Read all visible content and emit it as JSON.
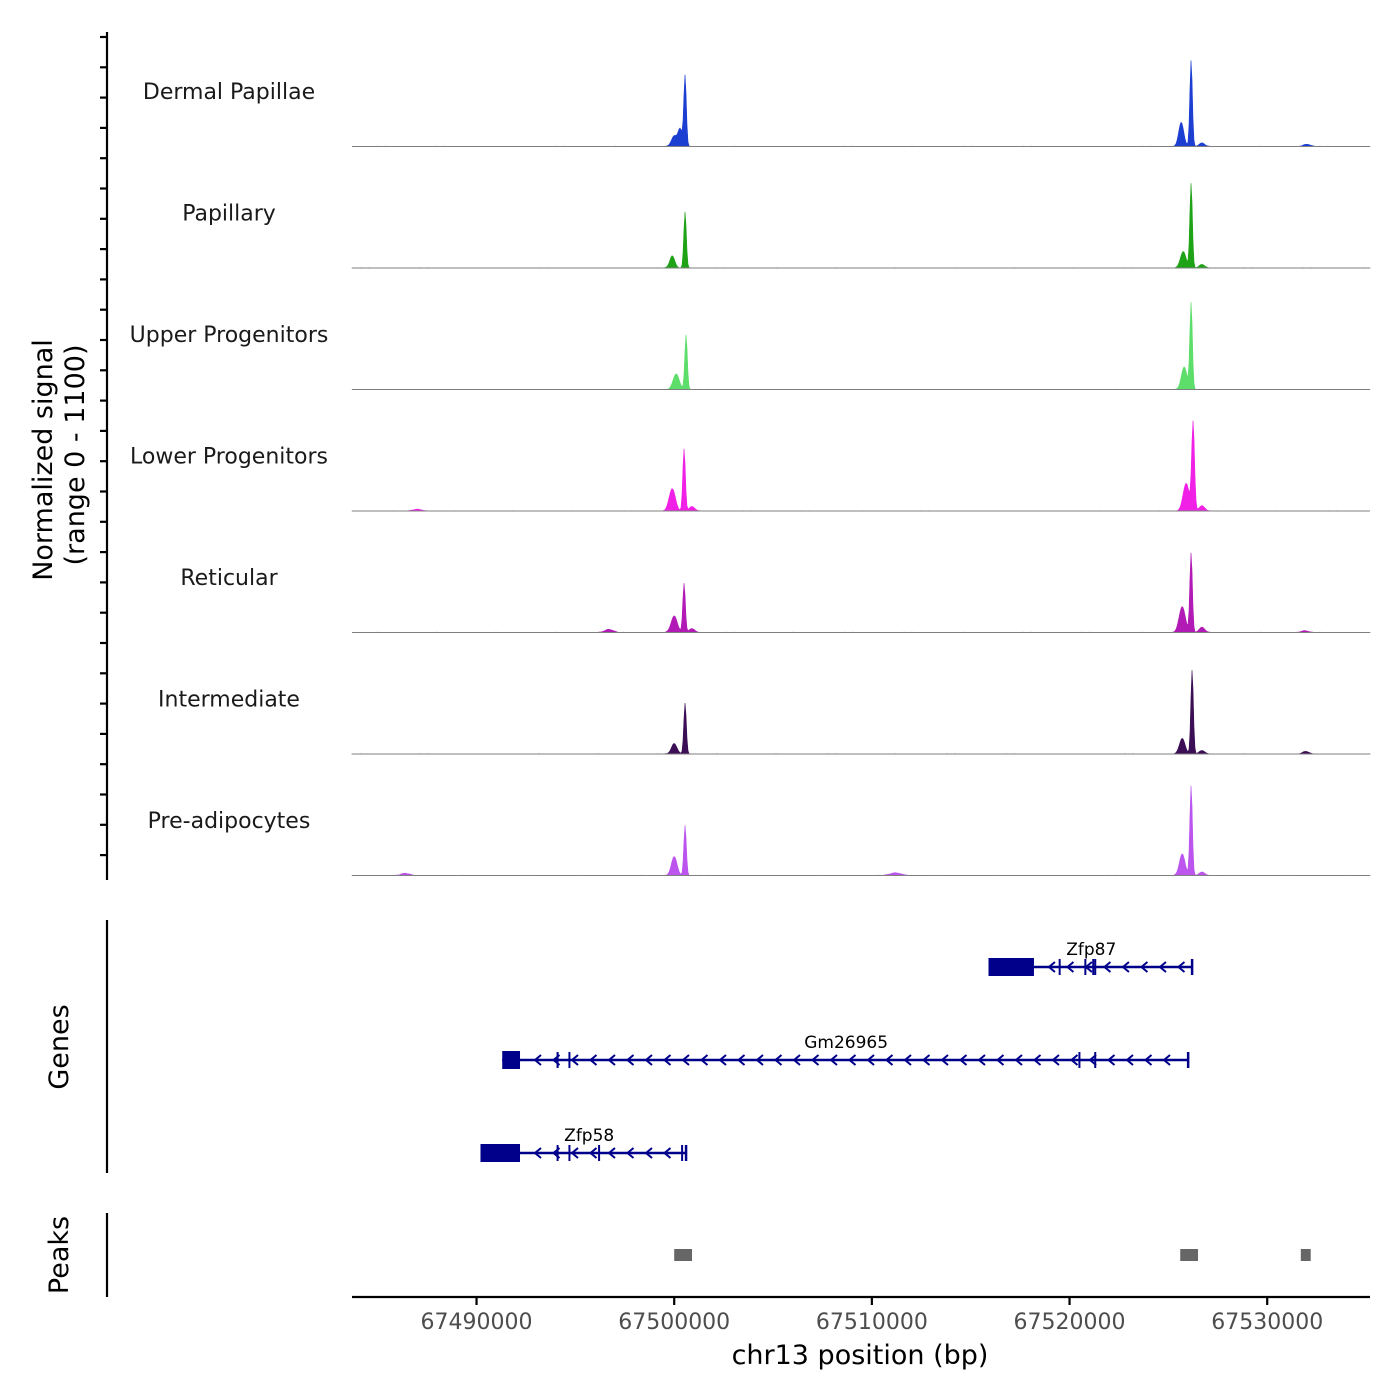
{
  "chart_data": {
    "type": "area",
    "title": "",
    "ylabel_line1": "Normalized signal",
    "ylabel_line2": "(range 0 - 1100)",
    "ylim": [
      0,
      1100
    ],
    "xlabel": "chr13 position (bp)",
    "xlim": [
      67483700,
      67535200
    ],
    "xticks": [
      {
        "value": 67490000,
        "label": "67490000"
      },
      {
        "value": 67500000,
        "label": "67500000"
      },
      {
        "value": 67510000,
        "label": "67510000"
      },
      {
        "value": 67520000,
        "label": "67520000"
      },
      {
        "value": 67530000,
        "label": "67530000"
      }
    ],
    "series": [
      {
        "name": "Dermal Papillae",
        "color": "#1d3fd1",
        "peaks": [
          {
            "pos": 67500000,
            "height": 120,
            "width": 200
          },
          {
            "pos": 67500550,
            "height": 820,
            "width": 90
          },
          {
            "pos": 67500300,
            "height": 200,
            "width": 150
          },
          {
            "pos": 67525650,
            "height": 280,
            "width": 180
          },
          {
            "pos": 67526150,
            "height": 1000,
            "width": 90
          },
          {
            "pos": 67526700,
            "height": 40,
            "width": 200
          },
          {
            "pos": 67532000,
            "height": 25,
            "width": 250
          }
        ]
      },
      {
        "name": "Papillary",
        "color": "#1ea316",
        "peaks": [
          {
            "pos": 67499900,
            "height": 140,
            "width": 180
          },
          {
            "pos": 67500550,
            "height": 650,
            "width": 90
          },
          {
            "pos": 67525750,
            "height": 190,
            "width": 200
          },
          {
            "pos": 67526150,
            "height": 980,
            "width": 90
          },
          {
            "pos": 67526700,
            "height": 40,
            "width": 200
          }
        ]
      },
      {
        "name": "Upper Progenitors",
        "color": "#5ddd6a",
        "peaks": [
          {
            "pos": 67500100,
            "height": 180,
            "width": 220
          },
          {
            "pos": 67500600,
            "height": 630,
            "width": 90
          },
          {
            "pos": 67525800,
            "height": 260,
            "width": 200
          },
          {
            "pos": 67526150,
            "height": 1000,
            "width": 90
          }
        ]
      },
      {
        "name": "Lower Progenitors",
        "color": "#f020e6",
        "peaks": [
          {
            "pos": 67487000,
            "height": 20,
            "width": 300
          },
          {
            "pos": 67499900,
            "height": 260,
            "width": 220
          },
          {
            "pos": 67500500,
            "height": 720,
            "width": 90
          },
          {
            "pos": 67500900,
            "height": 50,
            "width": 200
          },
          {
            "pos": 67525900,
            "height": 320,
            "width": 220
          },
          {
            "pos": 67526250,
            "height": 1020,
            "width": 100
          },
          {
            "pos": 67526700,
            "height": 60,
            "width": 200
          }
        ]
      },
      {
        "name": "Reticular",
        "color": "#b21ab6",
        "peaks": [
          {
            "pos": 67496700,
            "height": 35,
            "width": 300
          },
          {
            "pos": 67500000,
            "height": 190,
            "width": 220
          },
          {
            "pos": 67500500,
            "height": 570,
            "width": 90
          },
          {
            "pos": 67500900,
            "height": 45,
            "width": 200
          },
          {
            "pos": 67525700,
            "height": 300,
            "width": 220
          },
          {
            "pos": 67526150,
            "height": 920,
            "width": 90
          },
          {
            "pos": 67526700,
            "height": 60,
            "width": 200
          },
          {
            "pos": 67531900,
            "height": 20,
            "width": 250
          }
        ]
      },
      {
        "name": "Intermediate",
        "color": "#3b0e55",
        "peaks": [
          {
            "pos": 67500000,
            "height": 120,
            "width": 200
          },
          {
            "pos": 67500550,
            "height": 590,
            "width": 90
          },
          {
            "pos": 67525700,
            "height": 180,
            "width": 200
          },
          {
            "pos": 67526200,
            "height": 970,
            "width": 90
          },
          {
            "pos": 67526700,
            "height": 40,
            "width": 200
          },
          {
            "pos": 67531950,
            "height": 30,
            "width": 220
          }
        ]
      },
      {
        "name": "Pre-adipocytes",
        "color": "#bb55ee",
        "peaks": [
          {
            "pos": 67486400,
            "height": 25,
            "width": 300
          },
          {
            "pos": 67500000,
            "height": 220,
            "width": 200
          },
          {
            "pos": 67500550,
            "height": 580,
            "width": 90
          },
          {
            "pos": 67511200,
            "height": 30,
            "width": 400
          },
          {
            "pos": 67525700,
            "height": 250,
            "width": 200
          },
          {
            "pos": 67526150,
            "height": 1040,
            "width": 90
          },
          {
            "pos": 67526700,
            "height": 40,
            "width": 200
          }
        ]
      }
    ],
    "genes_title": "Genes",
    "genes": [
      {
        "name": "Zfp87",
        "start": 67515900,
        "end": 67526200,
        "utr": [
          67515900,
          67518200
        ],
        "exons": [
          67519500,
          67520800,
          67521200,
          67521300
        ]
      },
      {
        "name": "Gm26965",
        "start": 67491300,
        "end": 67526000,
        "utr": [
          67491300,
          67492200
        ],
        "exons": [
          67494100,
          67494700,
          67520500,
          67521300
        ]
      },
      {
        "name": "Zfp58",
        "start": 67490200,
        "end": 67500600,
        "utr": [
          67490200,
          67492200
        ],
        "exons": [
          67494100,
          67494700,
          67496200,
          67500400
        ]
      }
    ],
    "peaks_title": "Peaks",
    "peak_regions": [
      {
        "start": 67500000,
        "end": 67500900
      },
      {
        "start": 67525600,
        "end": 67526500
      },
      {
        "start": 67531700,
        "end": 67532200
      }
    ],
    "colors": {
      "gene": "#00008b",
      "peak_region": "#666666",
      "axis": "#000000",
      "baseline": "#7f7f7f"
    }
  }
}
